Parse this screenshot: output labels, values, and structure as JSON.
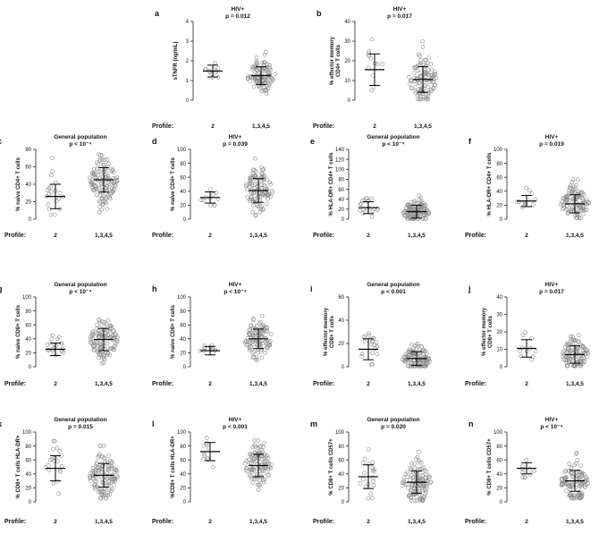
{
  "figure": {
    "profile_label": "Profile:"
  },
  "chart_data": [
    {
      "type": "scatter",
      "panel": "a",
      "title": "HIV+",
      "pvalue": "p = 0.012",
      "ylabel": [
        "sTNFR (ng/mL)"
      ],
      "yticks": [
        0,
        1,
        2,
        3,
        4
      ],
      "ylim": [
        0,
        4
      ],
      "categories": [
        "2",
        "1,3,4,5"
      ],
      "groups": [
        {
          "name": "2",
          "n": 12,
          "mean": 1.48,
          "sd": 0.3,
          "min": 1.0,
          "max": 1.9
        },
        {
          "name": "1,3,4,5",
          "n": 110,
          "mean": 1.25,
          "sd": 0.45,
          "min": 0.3,
          "max": 3.6
        }
      ]
    },
    {
      "type": "scatter",
      "panel": "b",
      "title": "HIV+",
      "pvalue": "p = 0.017",
      "ylabel": [
        "% effector memory",
        "CD4+ T cells"
      ],
      "yticks": [
        0,
        10,
        20,
        30,
        40
      ],
      "ylim": [
        0,
        40
      ],
      "categories": [
        "2",
        "1,3,4,5"
      ],
      "groups": [
        {
          "name": "2",
          "n": 13,
          "mean": 15.5,
          "sd": 8,
          "min": 5,
          "max": 32
        },
        {
          "name": "1,3,4,5",
          "n": 110,
          "mean": 10.5,
          "sd": 6.5,
          "min": 0.5,
          "max": 31
        }
      ]
    },
    {
      "type": "scatter",
      "panel": "c",
      "title": "General population",
      "pvalue": "p < 10⁻⁴",
      "ylabel": [
        "% naive CD4+ T cells"
      ],
      "yticks": [
        0,
        20,
        40,
        60,
        80
      ],
      "ylim": [
        0,
        80
      ],
      "categories": [
        "2",
        "1,3,4,5"
      ],
      "groups": [
        {
          "name": "2",
          "n": 20,
          "mean": 26,
          "sd": 14,
          "min": 5,
          "max": 70
        },
        {
          "name": "1,3,4,5",
          "n": 120,
          "mean": 45,
          "sd": 14,
          "min": 8,
          "max": 80
        }
      ]
    },
    {
      "type": "scatter",
      "panel": "d",
      "title": "HIV+",
      "pvalue": "p = 0.039",
      "ylabel": [
        "% naive CD4+ T cells"
      ],
      "yticks": [
        0,
        20,
        40,
        60,
        80,
        100
      ],
      "ylim": [
        0,
        100
      ],
      "categories": [
        "2",
        "1,3,4,5"
      ],
      "groups": [
        {
          "name": "2",
          "n": 11,
          "mean": 31,
          "sd": 8,
          "min": 20,
          "max": 48
        },
        {
          "name": "1,3,4,5",
          "n": 110,
          "mean": 41,
          "sd": 17,
          "min": 5,
          "max": 87
        }
      ]
    },
    {
      "type": "scatter",
      "panel": "e",
      "title": "General population",
      "pvalue": "p < 10⁻⁴",
      "ylabel": [
        "% HLA-DR+ CD4+ T cells"
      ],
      "yticks": [
        0,
        20,
        40,
        60,
        80,
        100,
        120,
        140
      ],
      "ylim": [
        0,
        140
      ],
      "categories": [
        "2",
        "1,3,4,5"
      ],
      "groups": [
        {
          "name": "2",
          "n": 20,
          "mean": 23,
          "sd": 12,
          "min": 5,
          "max": 55
        },
        {
          "name": "1,3,4,5",
          "n": 120,
          "mean": 15,
          "sd": 13,
          "min": 1,
          "max": 87
        }
      ]
    },
    {
      "type": "scatter",
      "panel": "f",
      "title": "HIV+",
      "pvalue": "p = 0.019",
      "ylabel": [
        "% HLA-DR+ CD4+ T cells"
      ],
      "yticks": [
        0,
        20,
        40,
        60,
        80,
        100
      ],
      "ylim": [
        0,
        100
      ],
      "categories": [
        "2",
        "1,3,4,5"
      ],
      "groups": [
        {
          "name": "2",
          "n": 11,
          "mean": 26,
          "sd": 8,
          "min": 15,
          "max": 45
        },
        {
          "name": "1,3,4,5",
          "n": 110,
          "mean": 22,
          "sd": 13,
          "min": 2,
          "max": 80
        }
      ]
    },
    {
      "type": "scatter",
      "panel": "g",
      "title": "General population",
      "pvalue": "p < 10⁻⁴",
      "ylabel": [
        "% naive CD8+ T cells"
      ],
      "yticks": [
        0,
        20,
        40,
        60,
        80,
        100
      ],
      "ylim": [
        0,
        100
      ],
      "categories": [
        "2",
        "1,3,4,5"
      ],
      "groups": [
        {
          "name": "2",
          "n": 20,
          "mean": 25,
          "sd": 9,
          "min": 10,
          "max": 45
        },
        {
          "name": "1,3,4,5",
          "n": 120,
          "mean": 39,
          "sd": 16,
          "min": 5,
          "max": 85
        }
      ]
    },
    {
      "type": "scatter",
      "panel": "h",
      "title": "HIV+",
      "pvalue": "p < 10⁻⁴",
      "ylabel": [
        "% naive CD8+ T cells"
      ],
      "yticks": [
        0,
        20,
        40,
        60,
        80,
        100
      ],
      "ylim": [
        0,
        100
      ],
      "categories": [
        "2",
        "1,3,4,5"
      ],
      "groups": [
        {
          "name": "2",
          "n": 11,
          "mean": 23,
          "sd": 6,
          "min": 15,
          "max": 35
        },
        {
          "name": "1,3,4,5",
          "n": 110,
          "mean": 40,
          "sd": 14,
          "min": 10,
          "max": 85
        }
      ]
    },
    {
      "type": "scatter",
      "panel": "i",
      "title": "General population",
      "pvalue": "p < 0.001",
      "ylabel": [
        "% effector memory",
        "CD8+ T cells"
      ],
      "yticks": [
        0,
        20,
        40,
        60
      ],
      "ylim": [
        0,
        60
      ],
      "categories": [
        "2",
        "1,3,4,5"
      ],
      "groups": [
        {
          "name": "2",
          "n": 20,
          "mean": 15,
          "sd": 9,
          "min": 2,
          "max": 43
        },
        {
          "name": "1,3,4,5",
          "n": 120,
          "mean": 7,
          "sd": 6,
          "min": 0.5,
          "max": 35
        }
      ]
    },
    {
      "type": "scatter",
      "panel": "j",
      "title": "HIV+",
      "pvalue": "p = 0.017",
      "ylabel": [
        "% effector memory",
        "CD8+ T cells"
      ],
      "yticks": [
        0,
        10,
        20,
        30,
        40
      ],
      "ylim": [
        0,
        40
      ],
      "categories": [
        "2",
        "1,3,4,5"
      ],
      "groups": [
        {
          "name": "2",
          "n": 11,
          "mean": 10.5,
          "sd": 5,
          "min": 3,
          "max": 20
        },
        {
          "name": "1,3,4,5",
          "n": 110,
          "mean": 7,
          "sd": 5,
          "min": 0.5,
          "max": 30
        }
      ]
    },
    {
      "type": "scatter",
      "panel": "k",
      "title": "General population",
      "pvalue": "p = 0.015",
      "ylabel": [
        "% CD8+ T cells HLA-DR+"
      ],
      "yticks": [
        0,
        20,
        40,
        60,
        80,
        100
      ],
      "ylim": [
        0,
        100
      ],
      "categories": [
        "2",
        "1,3,4,5"
      ],
      "groups": [
        {
          "name": "2",
          "n": 20,
          "mean": 48,
          "sd": 18,
          "min": 12,
          "max": 87
        },
        {
          "name": "1,3,4,5",
          "n": 120,
          "mean": 38,
          "sd": 17,
          "min": 5,
          "max": 82
        }
      ]
    },
    {
      "type": "scatter",
      "panel": "l",
      "title": "HIV+",
      "pvalue": "p < 0.001",
      "ylabel": [
        "%CD8+ T cells HLA-DR+"
      ],
      "yticks": [
        0,
        20,
        40,
        60,
        80,
        100
      ],
      "ylim": [
        0,
        100
      ],
      "categories": [
        "2",
        "1,3,4,5"
      ],
      "groups": [
        {
          "name": "2",
          "n": 11,
          "mean": 72,
          "sd": 13,
          "min": 50,
          "max": 92
        },
        {
          "name": "1,3,4,5",
          "n": 110,
          "mean": 52,
          "sd": 16,
          "min": 8,
          "max": 88
        }
      ]
    },
    {
      "type": "scatter",
      "panel": "m",
      "title": "General population",
      "pvalue": "p = 0.020",
      "ylabel": [
        "% CD8+ T cells CD57+"
      ],
      "yticks": [
        0,
        20,
        40,
        60,
        80,
        100
      ],
      "ylim": [
        0,
        100
      ],
      "categories": [
        "2",
        "1,3,4,5"
      ],
      "groups": [
        {
          "name": "2",
          "n": 20,
          "mean": 36,
          "sd": 17,
          "min": 5,
          "max": 75
        },
        {
          "name": "1,3,4,5",
          "n": 120,
          "mean": 28,
          "sd": 16,
          "min": 2,
          "max": 78
        }
      ]
    },
    {
      "type": "scatter",
      "panel": "n",
      "title": "HIV+",
      "pvalue": "p < 10⁻⁴",
      "ylabel": [
        "% CD8+ T cells CD57+"
      ],
      "yticks": [
        0,
        20,
        40,
        60,
        80,
        100
      ],
      "ylim": [
        0,
        100
      ],
      "categories": [
        "2",
        "1,3,4,5"
      ],
      "groups": [
        {
          "name": "2",
          "n": 11,
          "mean": 48,
          "sd": 8,
          "min": 35,
          "max": 60
        },
        {
          "name": "1,3,4,5",
          "n": 110,
          "mean": 30,
          "sd": 15,
          "min": 5,
          "max": 70
        }
      ]
    }
  ]
}
